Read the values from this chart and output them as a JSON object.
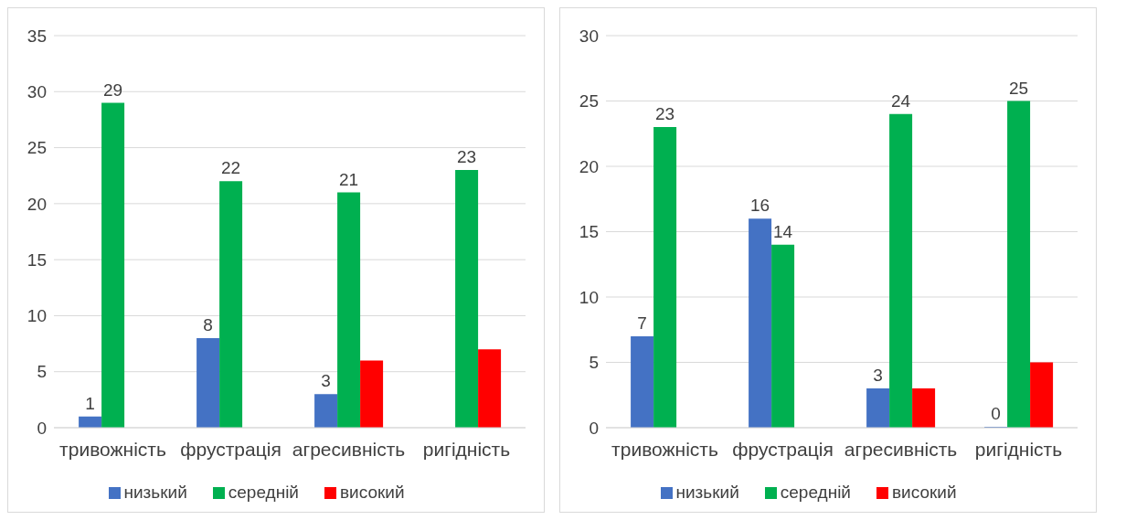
{
  "chart_data": [
    {
      "type": "bar",
      "categories": [
        "тривожність",
        "фрустрація",
        "агресивність",
        "ригідність"
      ],
      "ylim": [
        0,
        35
      ],
      "yticks": [
        0,
        5,
        10,
        15,
        20,
        25,
        30,
        35
      ],
      "grid": "y",
      "legend": "bottom",
      "series": [
        {
          "name": "низький",
          "color": "#4472c4",
          "values": [
            1,
            8,
            3,
            null
          ],
          "value_labels": [
            "1",
            "8",
            "3",
            null
          ]
        },
        {
          "name": "середній",
          "color": "#00b050",
          "values": [
            29,
            22,
            21,
            23
          ],
          "value_labels": [
            "29",
            "22",
            "21",
            "23"
          ]
        },
        {
          "name": "високий",
          "color": "#ff0000",
          "values": [
            null,
            null,
            6,
            7
          ],
          "value_labels": [
            null,
            null,
            null,
            null
          ]
        }
      ]
    },
    {
      "type": "bar",
      "categories": [
        "тривожність",
        "фрустрація",
        "агресивність",
        "ригідність"
      ],
      "ylim": [
        0,
        30
      ],
      "yticks": [
        0,
        5,
        10,
        15,
        20,
        25,
        30
      ],
      "grid": "y",
      "legend": "bottom",
      "series": [
        {
          "name": "низький",
          "color": "#4472c4",
          "values": [
            7,
            16,
            3,
            0
          ],
          "value_labels": [
            "7",
            "16",
            "3",
            "0"
          ]
        },
        {
          "name": "середній",
          "color": "#00b050",
          "values": [
            23,
            14,
            24,
            25
          ],
          "value_labels": [
            "23",
            "14",
            "24",
            "25"
          ]
        },
        {
          "name": "високий",
          "color": "#ff0000",
          "values": [
            null,
            null,
            3,
            5
          ],
          "value_labels": [
            null,
            null,
            null,
            null
          ]
        }
      ]
    }
  ]
}
